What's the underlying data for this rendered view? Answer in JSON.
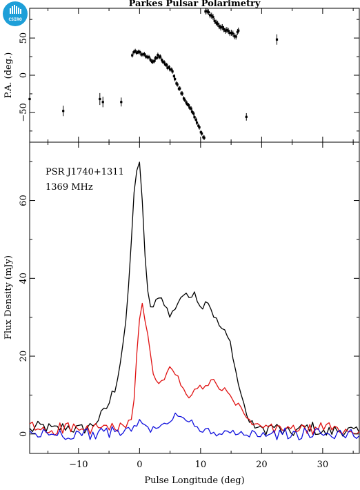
{
  "header": {
    "title": "Parkes Pulsar Polarimetry",
    "logo_text": "CSIRO",
    "logo_color": "#1e9fd8"
  },
  "chart_data": [
    {
      "type": "scatter",
      "panel": "top",
      "ylabel": "P.A. (deg.)",
      "xlim": [
        -18,
        36
      ],
      "ylim": [
        -90,
        90
      ],
      "yticks": [
        -50,
        0,
        50
      ],
      "ytick_labels": [
        "−50",
        "0",
        "50"
      ],
      "grid": false,
      "isolated_points": [
        {
          "x": -18.0,
          "y": -32,
          "err": 7
        },
        {
          "x": -12.5,
          "y": -48,
          "err": 7
        },
        {
          "x": -6.5,
          "y": -32,
          "err": 8
        },
        {
          "x": -6.0,
          "y": -36,
          "err": 7
        },
        {
          "x": -3.0,
          "y": -36,
          "err": 6
        },
        {
          "x": 17.5,
          "y": -56,
          "err": 5
        },
        {
          "x": 22.5,
          "y": 48,
          "err": 7
        }
      ],
      "track_1": {
        "x": [
          -1.2,
          -0.7,
          -0.2,
          0.3,
          0.8,
          1.3,
          1.8,
          2.2,
          2.6,
          3.0,
          3.4,
          3.8,
          4.2,
          4.6,
          5.0,
          5.4,
          5.8,
          6.2,
          6.6,
          7.0,
          7.4,
          7.8,
          8.2,
          8.6,
          9.0,
          9.4,
          9.8,
          10.2,
          10.6
        ],
        "y": [
          28,
          32,
          31,
          29,
          27,
          25,
          21,
          18,
          22,
          26,
          24,
          18,
          15,
          11,
          9,
          6,
          -5,
          -13,
          -19,
          -26,
          -34,
          -39,
          -43,
          -48,
          -55,
          -63,
          -70,
          -79,
          -84
        ],
        "err": 3
      },
      "track_2": {
        "x": [
          10.8,
          11.3,
          11.8,
          12.3,
          12.8,
          13.3,
          13.8,
          14.3,
          14.8,
          15.3,
          15.8,
          16.2
        ],
        "y": [
          87,
          84,
          80,
          74,
          68,
          65,
          62,
          60,
          58,
          55,
          52,
          60
        ],
        "err": 4
      }
    },
    {
      "type": "line",
      "panel": "bottom",
      "xlabel": "Pulse Longitude (deg)",
      "ylabel": "Flux Density (mJy)",
      "xlim": [
        -18,
        36
      ],
      "ylim": [
        -5,
        75
      ],
      "xticks": [
        -10,
        0,
        10,
        20,
        30
      ],
      "xtick_labels": [
        "−10",
        "0",
        "10",
        "20",
        "30"
      ],
      "yticks": [
        0,
        20,
        40,
        60
      ],
      "ytick_labels": [
        "0",
        "20",
        "40",
        "60"
      ],
      "grid": false,
      "annotations": [
        "PSR J1740+1311",
        "1369 MHz"
      ],
      "series": [
        {
          "color": "#000000",
          "x": [
            -18,
            -16,
            -14,
            -12,
            -10,
            -8,
            -6,
            -5,
            -4,
            -3,
            -2,
            -1.5,
            -1,
            -0.5,
            0,
            0.5,
            1,
            1.5,
            2,
            2.5,
            3,
            4,
            5,
            6,
            7,
            8,
            9,
            10,
            11,
            12,
            13,
            14,
            15,
            16,
            17,
            18,
            20,
            22,
            24,
            26,
            28,
            30,
            32,
            34,
            36
          ],
          "y": [
            1,
            2,
            1,
            2,
            1,
            2,
            5,
            8,
            12,
            20,
            32,
            45,
            60,
            68,
            70,
            58,
            42,
            35,
            31,
            33,
            36,
            34,
            30,
            33,
            36,
            35,
            37,
            32,
            35,
            31,
            28,
            26,
            23,
            14,
            8,
            3,
            1,
            2,
            0,
            1,
            2,
            0,
            1,
            1,
            0
          ],
          "noise": 1.6
        },
        {
          "color": "#e01010",
          "x": [
            -18,
            -16,
            -14,
            -12,
            -10,
            -8,
            -6,
            -4,
            -2,
            -1,
            -0.5,
            0,
            0.5,
            1,
            1.5,
            2,
            2.5,
            3,
            4,
            5,
            6,
            7,
            8,
            9,
            10,
            11,
            12,
            13,
            14,
            15,
            16,
            17,
            18,
            20,
            22,
            24,
            26,
            28,
            30,
            32,
            34,
            36
          ],
          "y": [
            2,
            1,
            1,
            2,
            1,
            1,
            2,
            1,
            2,
            6,
            20,
            30,
            33,
            27,
            24,
            18,
            14,
            12,
            14,
            18,
            15,
            12,
            9,
            11,
            12,
            12,
            14,
            12,
            11,
            9,
            8,
            5,
            3,
            2,
            1,
            2,
            1,
            1,
            2,
            1,
            1,
            0
          ],
          "noise": 1.5
        },
        {
          "color": "#1010dd",
          "x": [
            -18,
            -14,
            -10,
            -6,
            -2,
            0,
            2,
            4,
            6,
            8,
            10,
            14,
            18,
            22,
            26,
            30,
            34,
            36
          ],
          "y": [
            0,
            0,
            0,
            0,
            1,
            3,
            1,
            2,
            5,
            4,
            1,
            0,
            0,
            0,
            0,
            0,
            0,
            0
          ],
          "noise": 1.6
        }
      ]
    }
  ]
}
